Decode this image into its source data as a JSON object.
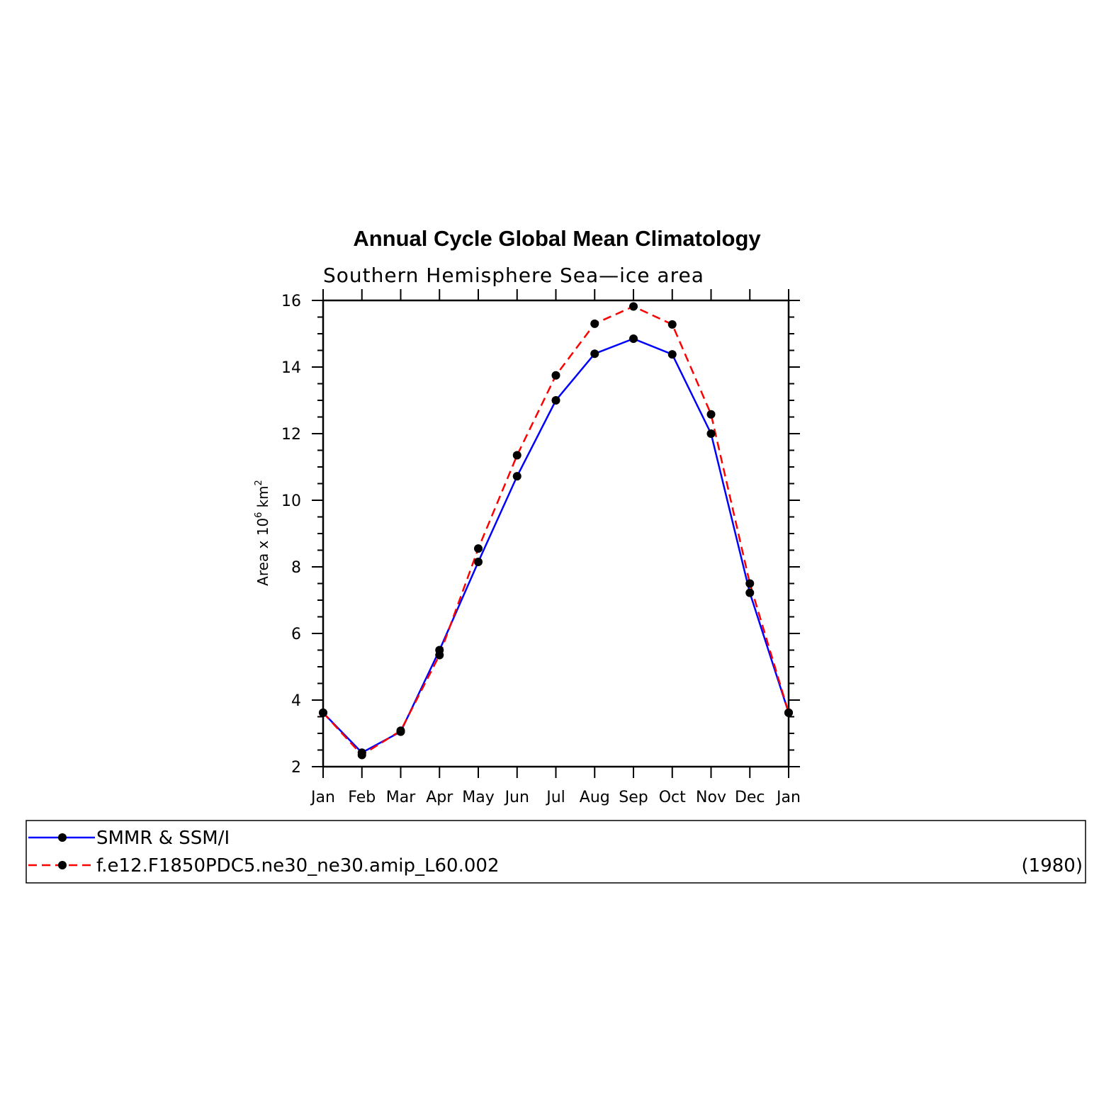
{
  "chart_data": {
    "type": "line",
    "title": "Annual Cycle Global Mean Climatology",
    "subtitle": "Southern Hemisphere Sea—ice area",
    "xlabel": "",
    "ylabel": "Area x 10",
    "ylabel_exponent": "6",
    "ylabel_unit": "km",
    "ylabel_unit_exponent": "2",
    "categories": [
      "Jan",
      "Feb",
      "Mar",
      "Apr",
      "May",
      "Jun",
      "Jul",
      "Aug",
      "Sep",
      "Oct",
      "Nov",
      "Dec",
      "Jan"
    ],
    "ylim": [
      2,
      16
    ],
    "yticks": [
      2,
      4,
      6,
      8,
      10,
      12,
      14,
      16
    ],
    "series": [
      {
        "name": "SMMR & SSM/I",
        "color": "#0000ff",
        "dash": "solid",
        "values": [
          3.62,
          2.42,
          3.05,
          5.5,
          8.15,
          10.72,
          13.0,
          14.4,
          14.85,
          14.38,
          12.0,
          7.22,
          3.62
        ]
      },
      {
        "name": "f.e12.F1850PDC5.ne30_ne30.amip_L60.002",
        "color": "#ff0000",
        "dash": "dashed",
        "values": [
          3.62,
          2.35,
          3.08,
          5.35,
          8.55,
          11.35,
          13.75,
          15.3,
          15.82,
          15.28,
          12.58,
          7.5,
          3.62
        ]
      }
    ],
    "legend_note": "(1980)",
    "legend_position": "bottom",
    "grid": false
  }
}
